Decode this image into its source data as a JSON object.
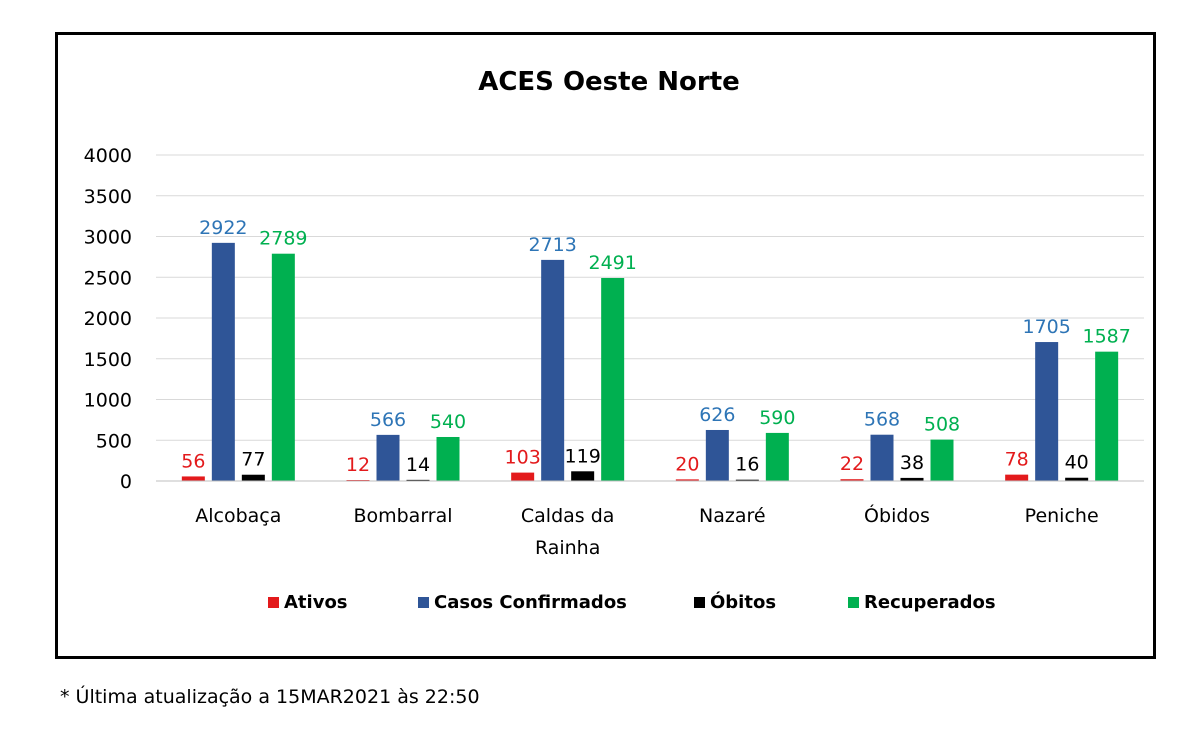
{
  "chart_data": {
    "type": "bar",
    "title": "ACES Oeste Norte",
    "categories": [
      [
        "Alcobaça"
      ],
      [
        "Bombarral"
      ],
      [
        "Caldas da",
        "Rainha"
      ],
      [
        "Nazaré"
      ],
      [
        "Óbidos"
      ],
      [
        "Peniche"
      ]
    ],
    "series": [
      {
        "name": "Ativos",
        "color": "#e31a1c",
        "label_color": "#e31a1c",
        "values": [
          56,
          12,
          103,
          20,
          22,
          78
        ]
      },
      {
        "name": "Casos Confirmados",
        "color": "#2f5597",
        "label_color": "#2e75b6",
        "values": [
          2922,
          566,
          2713,
          626,
          568,
          1705
        ]
      },
      {
        "name": "Óbitos",
        "color": "#000000",
        "label_color": "#000000",
        "values": [
          77,
          14,
          119,
          16,
          38,
          40
        ]
      },
      {
        "name": "Recuperados",
        "color": "#00b050",
        "label_color": "#00b050",
        "values": [
          2789,
          540,
          2491,
          590,
          508,
          1587
        ]
      }
    ],
    "ylim": [
      0,
      4000
    ],
    "yticks": [
      0,
      500,
      1000,
      1500,
      2000,
      2500,
      3000,
      3500,
      4000
    ],
    "grid": true,
    "legend_position": "bottom",
    "xlabel": "",
    "ylabel": ""
  },
  "footnote": "* Última atualização a 15MAR2021 às 22:50"
}
